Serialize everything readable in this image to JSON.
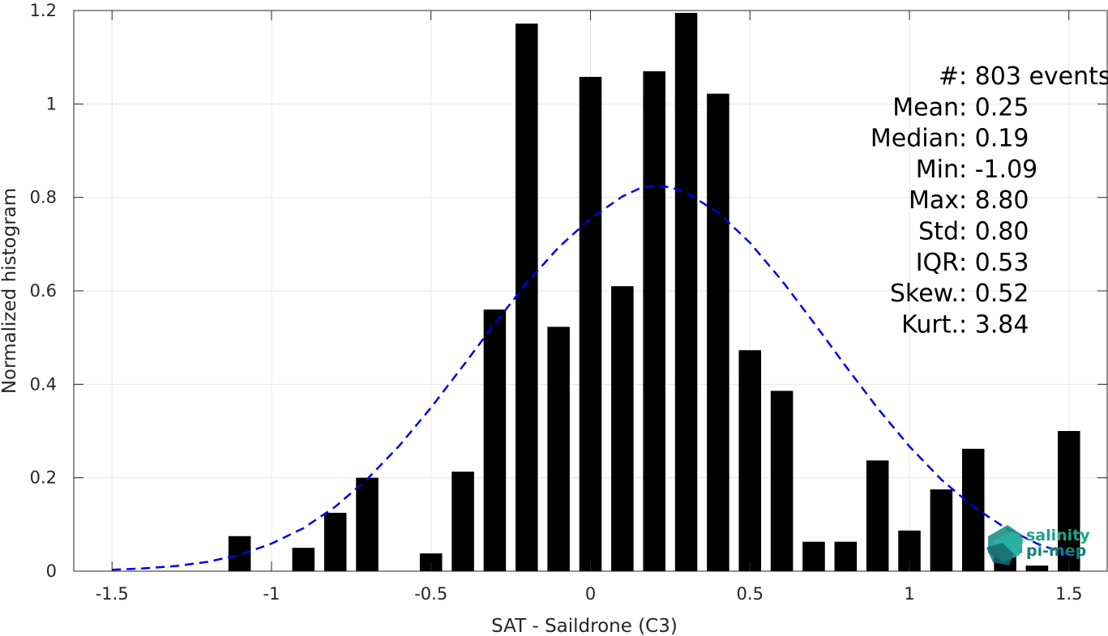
{
  "chart_data": {
    "type": "bar",
    "xlabel": "SAT - Saildrone (C3)",
    "ylabel": "Normalized histogram",
    "xlim": [
      -1.62,
      1.62
    ],
    "ylim": [
      0,
      1.2
    ],
    "grid": true,
    "xticks": [
      -1.5,
      -1,
      -0.5,
      0,
      0.5,
      1,
      1.5
    ],
    "xtick_labels": [
      "-1.5",
      "-1",
      "-0.5",
      "0",
      "0.5",
      "1",
      "1.5"
    ],
    "yticks": [
      0,
      0.2,
      0.4,
      0.6,
      0.8,
      1,
      1.2
    ],
    "ytick_labels": [
      "0",
      "0.2",
      "0.4",
      "0.6",
      "0.8",
      "1",
      "1.2"
    ],
    "bar_width": 0.07,
    "bars": [
      {
        "x": -1.1,
        "value": 0.075
      },
      {
        "x": -0.9,
        "value": 0.05
      },
      {
        "x": -0.8,
        "value": 0.125
      },
      {
        "x": -0.7,
        "value": 0.2
      },
      {
        "x": -0.5,
        "value": 0.038
      },
      {
        "x": -0.4,
        "value": 0.213
      },
      {
        "x": -0.3,
        "value": 0.56
      },
      {
        "x": -0.2,
        "value": 1.172
      },
      {
        "x": -0.1,
        "value": 0.523
      },
      {
        "x": 0.0,
        "value": 1.058
      },
      {
        "x": 0.1,
        "value": 0.61
      },
      {
        "x": 0.2,
        "value": 1.07
      },
      {
        "x": 0.3,
        "value": 1.195
      },
      {
        "x": 0.4,
        "value": 1.022
      },
      {
        "x": 0.5,
        "value": 0.473
      },
      {
        "x": 0.6,
        "value": 0.386
      },
      {
        "x": 0.7,
        "value": 0.063
      },
      {
        "x": 0.8,
        "value": 0.063
      },
      {
        "x": 0.9,
        "value": 0.237
      },
      {
        "x": 1.0,
        "value": 0.087
      },
      {
        "x": 1.1,
        "value": 0.175
      },
      {
        "x": 1.2,
        "value": 0.262
      },
      {
        "x": 1.3,
        "value": 0.037
      },
      {
        "x": 1.4,
        "value": 0.012
      },
      {
        "x": 1.5,
        "value": 0.3
      }
    ],
    "fit_curve": {
      "style": "dashed",
      "color": "#0000e6",
      "x": [
        -1.5,
        -1.4,
        -1.3,
        -1.2,
        -1.1,
        -1.0,
        -0.9,
        -0.8,
        -0.7,
        -0.6,
        -0.5,
        -0.4,
        -0.3,
        -0.2,
        -0.1,
        0.0,
        0.1,
        0.15,
        0.2,
        0.25,
        0.3,
        0.4,
        0.5,
        0.6,
        0.7,
        0.8,
        0.9,
        1.0,
        1.1,
        1.2,
        1.3,
        1.4,
        1.5
      ],
      "y": [
        0.003,
        0.006,
        0.011,
        0.02,
        0.035,
        0.059,
        0.092,
        0.138,
        0.197,
        0.268,
        0.35,
        0.439,
        0.53,
        0.617,
        0.693,
        0.755,
        0.802,
        0.818,
        0.825,
        0.822,
        0.81,
        0.768,
        0.703,
        0.622,
        0.532,
        0.439,
        0.349,
        0.267,
        0.196,
        0.138,
        0.093,
        0.059,
        0.035
      ]
    }
  },
  "stats": [
    {
      "label": "#  ",
      "value": ": 803 events"
    },
    {
      "label": "Mean ",
      "value": ": 0.25"
    },
    {
      "label": "Median ",
      "value": ": 0.19"
    },
    {
      "label": "Min ",
      "value": ": -1.09"
    },
    {
      "label": "Max ",
      "value": ": 8.80"
    },
    {
      "label": "Std ",
      "value": ": 0.80"
    },
    {
      "label": "IQR ",
      "value": ": 0.53"
    },
    {
      "label": "Skew. ",
      "value": ": 0.52"
    },
    {
      "label": "Kurt. ",
      "value": ": 3.84"
    }
  ],
  "logo": {
    "line1": "salinity",
    "line2": "pi-mep",
    "color": "#19a48a"
  }
}
